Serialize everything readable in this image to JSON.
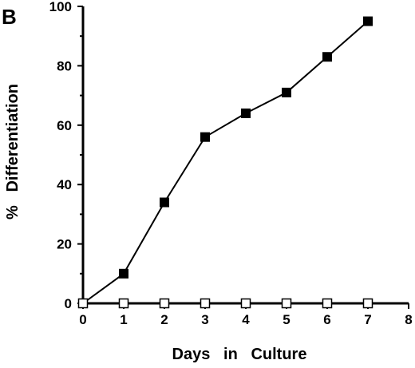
{
  "panel_label": "B",
  "chart_data": {
    "type": "line",
    "title": "",
    "xlabel": "Days   in   Culture",
    "ylabel": "%   Differentiation",
    "xlim": [
      0,
      8
    ],
    "ylim": [
      0,
      100
    ],
    "xticks": [
      0,
      1,
      2,
      3,
      4,
      5,
      6,
      7,
      8
    ],
    "yticks": [
      0,
      20,
      40,
      60,
      80,
      100
    ],
    "grid": false,
    "legend": "none",
    "series": [
      {
        "marker": "filled-square",
        "color": "#000000",
        "x": [
          0,
          1,
          2,
          3,
          4,
          5,
          6,
          7
        ],
        "y": [
          0,
          10,
          34,
          56,
          64,
          71,
          83,
          95
        ]
      },
      {
        "marker": "open-square",
        "color": "#000000",
        "x": [
          0,
          1,
          2,
          3,
          4,
          5,
          6,
          7
        ],
        "y": [
          0,
          0,
          0,
          0,
          0,
          0,
          0,
          0
        ]
      }
    ]
  }
}
